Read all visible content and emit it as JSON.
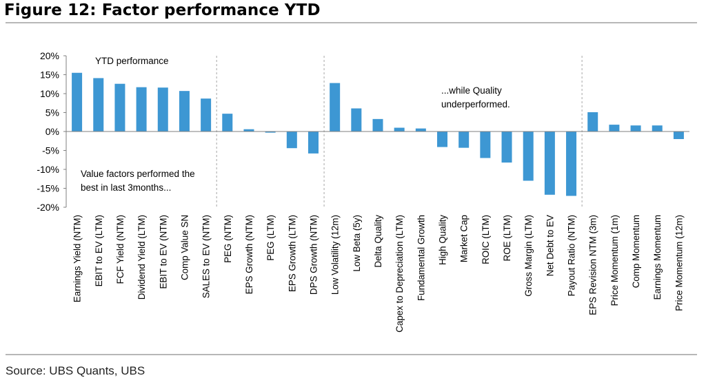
{
  "title": "Figure 12: Factor performance YTD",
  "source": "Source: UBS Quants, UBS",
  "colors": {
    "bar": "#3d97d3",
    "axis": "#7f7f7f",
    "divider": "#a6a6a6",
    "rule": "#b7b7b7"
  },
  "chart_data": {
    "type": "bar",
    "categories": [
      "Earnings Yield  (NTM)",
      "EBIT to EV (LTM)",
      "FCF Yield (NTM)",
      "Dividend Yield (LTM)",
      "EBIT to EV (NTM)",
      "Comp Value SN",
      "SALES to EV (NTM)",
      "PEG (NTM)",
      "EPS Growth (NTM)",
      "PEG (LTM)",
      "EPS Growth (LTM)",
      "DPS Growth (NTM)",
      "Low Volatility (12m)",
      "Low Beta (5y)",
      "Delta Quality",
      "Capex to Depreciation (LTM)",
      "Fundamental Growth",
      "High Quality",
      "Market Cap",
      "ROIC (LTM)",
      "ROE (LTM)",
      "Gross Margin (LTM)",
      "Net Debt to EV",
      "Payout Ratio (NTM)",
      "EPS Revision NTM (3m)",
      "Price Momentum (1m)",
      "Comp Momentum",
      "Earnings Momentum",
      "Price Momentum (12m)"
    ],
    "values": [
      15.5,
      14.1,
      12.6,
      11.7,
      11.6,
      10.7,
      8.7,
      4.7,
      0.6,
      -0.3,
      -4.4,
      -5.8,
      12.8,
      6.1,
      3.3,
      1.0,
      0.8,
      -4.1,
      -4.3,
      -7.0,
      -8.2,
      -13.0,
      -16.7,
      -17.0,
      5.1,
      1.8,
      1.6,
      1.6,
      -2.0
    ],
    "ylim": [
      -20,
      20
    ],
    "yticks": [
      -20,
      -15,
      -10,
      -5,
      0,
      5,
      10,
      15,
      20
    ],
    "ytick_labels": [
      "-20%",
      "-15%",
      "-10%",
      "-5%",
      "0%",
      "5%",
      "10%",
      "15%",
      "20%"
    ],
    "group_dividers_after": [
      6,
      11,
      23
    ],
    "grid": false,
    "legend": "none",
    "annotations": [
      {
        "lines": [
          "YTD performance"
        ]
      },
      {
        "lines": [
          "Value factors performed the",
          "best in last 3months..."
        ]
      },
      {
        "lines": [
          "...while Quality",
          "underperformed."
        ]
      }
    ]
  }
}
